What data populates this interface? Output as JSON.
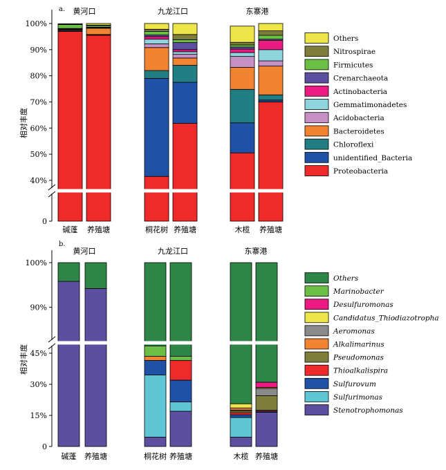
{
  "chart_data": [
    {
      "type": "bar",
      "stacked": true,
      "panel_label": "a.",
      "ylabel": "相对丰度",
      "y_ticks": [
        "0",
        "40%",
        "50%",
        "60%",
        "70%",
        "80%",
        "90%",
        "100%"
      ],
      "y_axis_break": [
        0,
        36
      ],
      "groups": [
        {
          "name": "黄河口",
          "categories": [
            "碱蓬",
            "养殖塘"
          ]
        },
        {
          "name": "九龙江口",
          "categories": [
            "桐花树",
            "养殖塘"
          ]
        },
        {
          "name": "东寨港",
          "categories": [
            "木榄",
            "养殖塘"
          ]
        }
      ],
      "categories": [
        "碱蓬",
        "养殖塘",
        "桐花树",
        "养殖塘",
        "木榄",
        "养殖塘"
      ],
      "series": [
        {
          "name": "Proteobacteria",
          "color": "#ee2a2a",
          "values": [
            97.0,
            95.5,
            41.5,
            61.8,
            50.5,
            70.0
          ]
        },
        {
          "name": "unidentified_Bacteria",
          "color": "#1f52a6",
          "values": [
            0.3,
            0.2,
            37.5,
            15.7,
            11.5,
            0.7
          ]
        },
        {
          "name": "Chloroflexi",
          "color": "#217e82",
          "values": [
            0.1,
            0.1,
            3.0,
            6.5,
            12.8,
            2.0
          ]
        },
        {
          "name": "Bacteroidetes",
          "color": "#f18430",
          "values": [
            0.3,
            2.4,
            8.8,
            2.8,
            8.4,
            11.0
          ]
        },
        {
          "name": "Acidobacteria",
          "color": "#c690c4",
          "values": [
            0.1,
            0.1,
            1.4,
            1.4,
            4.2,
            2.0
          ]
        },
        {
          "name": "Gemmatimonadetes",
          "color": "#8fd3dd",
          "values": [
            0.1,
            0.1,
            1.8,
            1.0,
            1.5,
            4.3
          ]
        },
        {
          "name": "Actinobacteria",
          "color": "#ec1b83",
          "values": [
            0.1,
            0.1,
            1.0,
            0.8,
            1.3,
            3.5
          ]
        },
        {
          "name": "Crenarchaeota",
          "color": "#5c4fa0",
          "values": [
            0.1,
            0.1,
            0.6,
            2.7,
            0.8,
            0.5
          ]
        },
        {
          "name": "Firmicutes",
          "color": "#6bbf45",
          "values": [
            1.5,
            0.6,
            1.4,
            1.1,
            0.8,
            1.5
          ]
        },
        {
          "name": "Nitrospirae",
          "color": "#7f7d3c",
          "values": [
            0.1,
            0.2,
            0.8,
            2.0,
            1.0,
            1.7
          ]
        },
        {
          "name": "Others",
          "color": "#eee54a",
          "values": [
            0.2,
            0.6,
            2.2,
            4.2,
            6.2,
            2.8
          ]
        }
      ],
      "legend_order": [
        "Others",
        "Nitrospirae",
        "Firmicutes",
        "Crenarchaeota",
        "Actinobacteria",
        "Gemmatimonadetes",
        "Acidobacteria",
        "Bacteroidetes",
        "Chloroflexi",
        "unidentified_Bacteria",
        "Proteobacteria"
      ],
      "legend_italic": false
    },
    {
      "type": "bar",
      "stacked": true,
      "panel_label": "b.",
      "ylabel": "相对丰度",
      "y_ticks": [
        "0",
        "15%",
        "30%",
        "45%",
        "90%",
        "100%"
      ],
      "y_axis_break": [
        50,
        82
      ],
      "groups": [
        {
          "name": "黄河口",
          "categories": [
            "碱蓬",
            "养殖塘"
          ]
        },
        {
          "name": "九龙江口",
          "categories": [
            "桐花树",
            "养殖塘"
          ]
        },
        {
          "name": "东寨港",
          "categories": [
            "木榄",
            "养殖塘"
          ]
        }
      ],
      "categories": [
        "碱蓬",
        "养殖塘",
        "桐花树",
        "养殖塘",
        "木榄",
        "养殖塘"
      ],
      "series": [
        {
          "name": "Stenotrophomonas",
          "color": "#5c4fa0",
          "values": [
            95.8,
            94.2,
            4.5,
            17.0,
            4.5,
            16.5
          ]
        },
        {
          "name": "Sulfurimonas",
          "color": "#5ec6d5",
          "values": [
            0,
            0,
            30.0,
            4.5,
            9.5,
            0
          ]
        },
        {
          "name": "Sulfurovum",
          "color": "#1f52a6",
          "values": [
            0,
            0,
            7.0,
            10.5,
            1.3,
            0.5
          ]
        },
        {
          "name": "Thioalkalispira",
          "color": "#ee2a2a",
          "values": [
            0,
            0,
            0,
            9.5,
            1.0,
            0.5
          ]
        },
        {
          "name": "Pseudomonas",
          "color": "#7f7d3c",
          "values": [
            0,
            0,
            0,
            0,
            0.8,
            7.0
          ]
        },
        {
          "name": "Aeromonas",
          "color": "#8a8a8a",
          "values": [
            0,
            0,
            0,
            0,
            0.5,
            3.5
          ]
        },
        {
          "name": "Alkalimarinus",
          "color": "#f18430",
          "values": [
            0,
            0,
            2.0,
            0,
            1.0,
            0.5
          ]
        },
        {
          "name": "Candidatus_Thiodiazotropha",
          "color": "#eee54a",
          "values": [
            0,
            0,
            0,
            0,
            2.0,
            0
          ]
        },
        {
          "name": "Desulfuromonas",
          "color": "#ec1b83",
          "values": [
            0,
            0,
            0,
            0,
            0,
            2.5
          ]
        },
        {
          "name": "Marinobacter",
          "color": "#6bbf45",
          "values": [
            0,
            0,
            5.0,
            2.0,
            0,
            0
          ]
        },
        {
          "name": "Others",
          "color": "#2e8646",
          "values": [
            4.2,
            5.8,
            51.5,
            56.5,
            79.4,
            69.0
          ]
        }
      ],
      "legend_order": [
        "Others",
        "Marinobacter",
        "Desulfuromonas",
        "Candidatus_Thiodiazotropha",
        "Aeromonas",
        "Alkalimarinus",
        "Pseudomonas",
        "Thioalkalispira",
        "Sulfurovum",
        "Sulfurimonas",
        "Stenotrophomonas"
      ],
      "legend_italic": true
    }
  ]
}
